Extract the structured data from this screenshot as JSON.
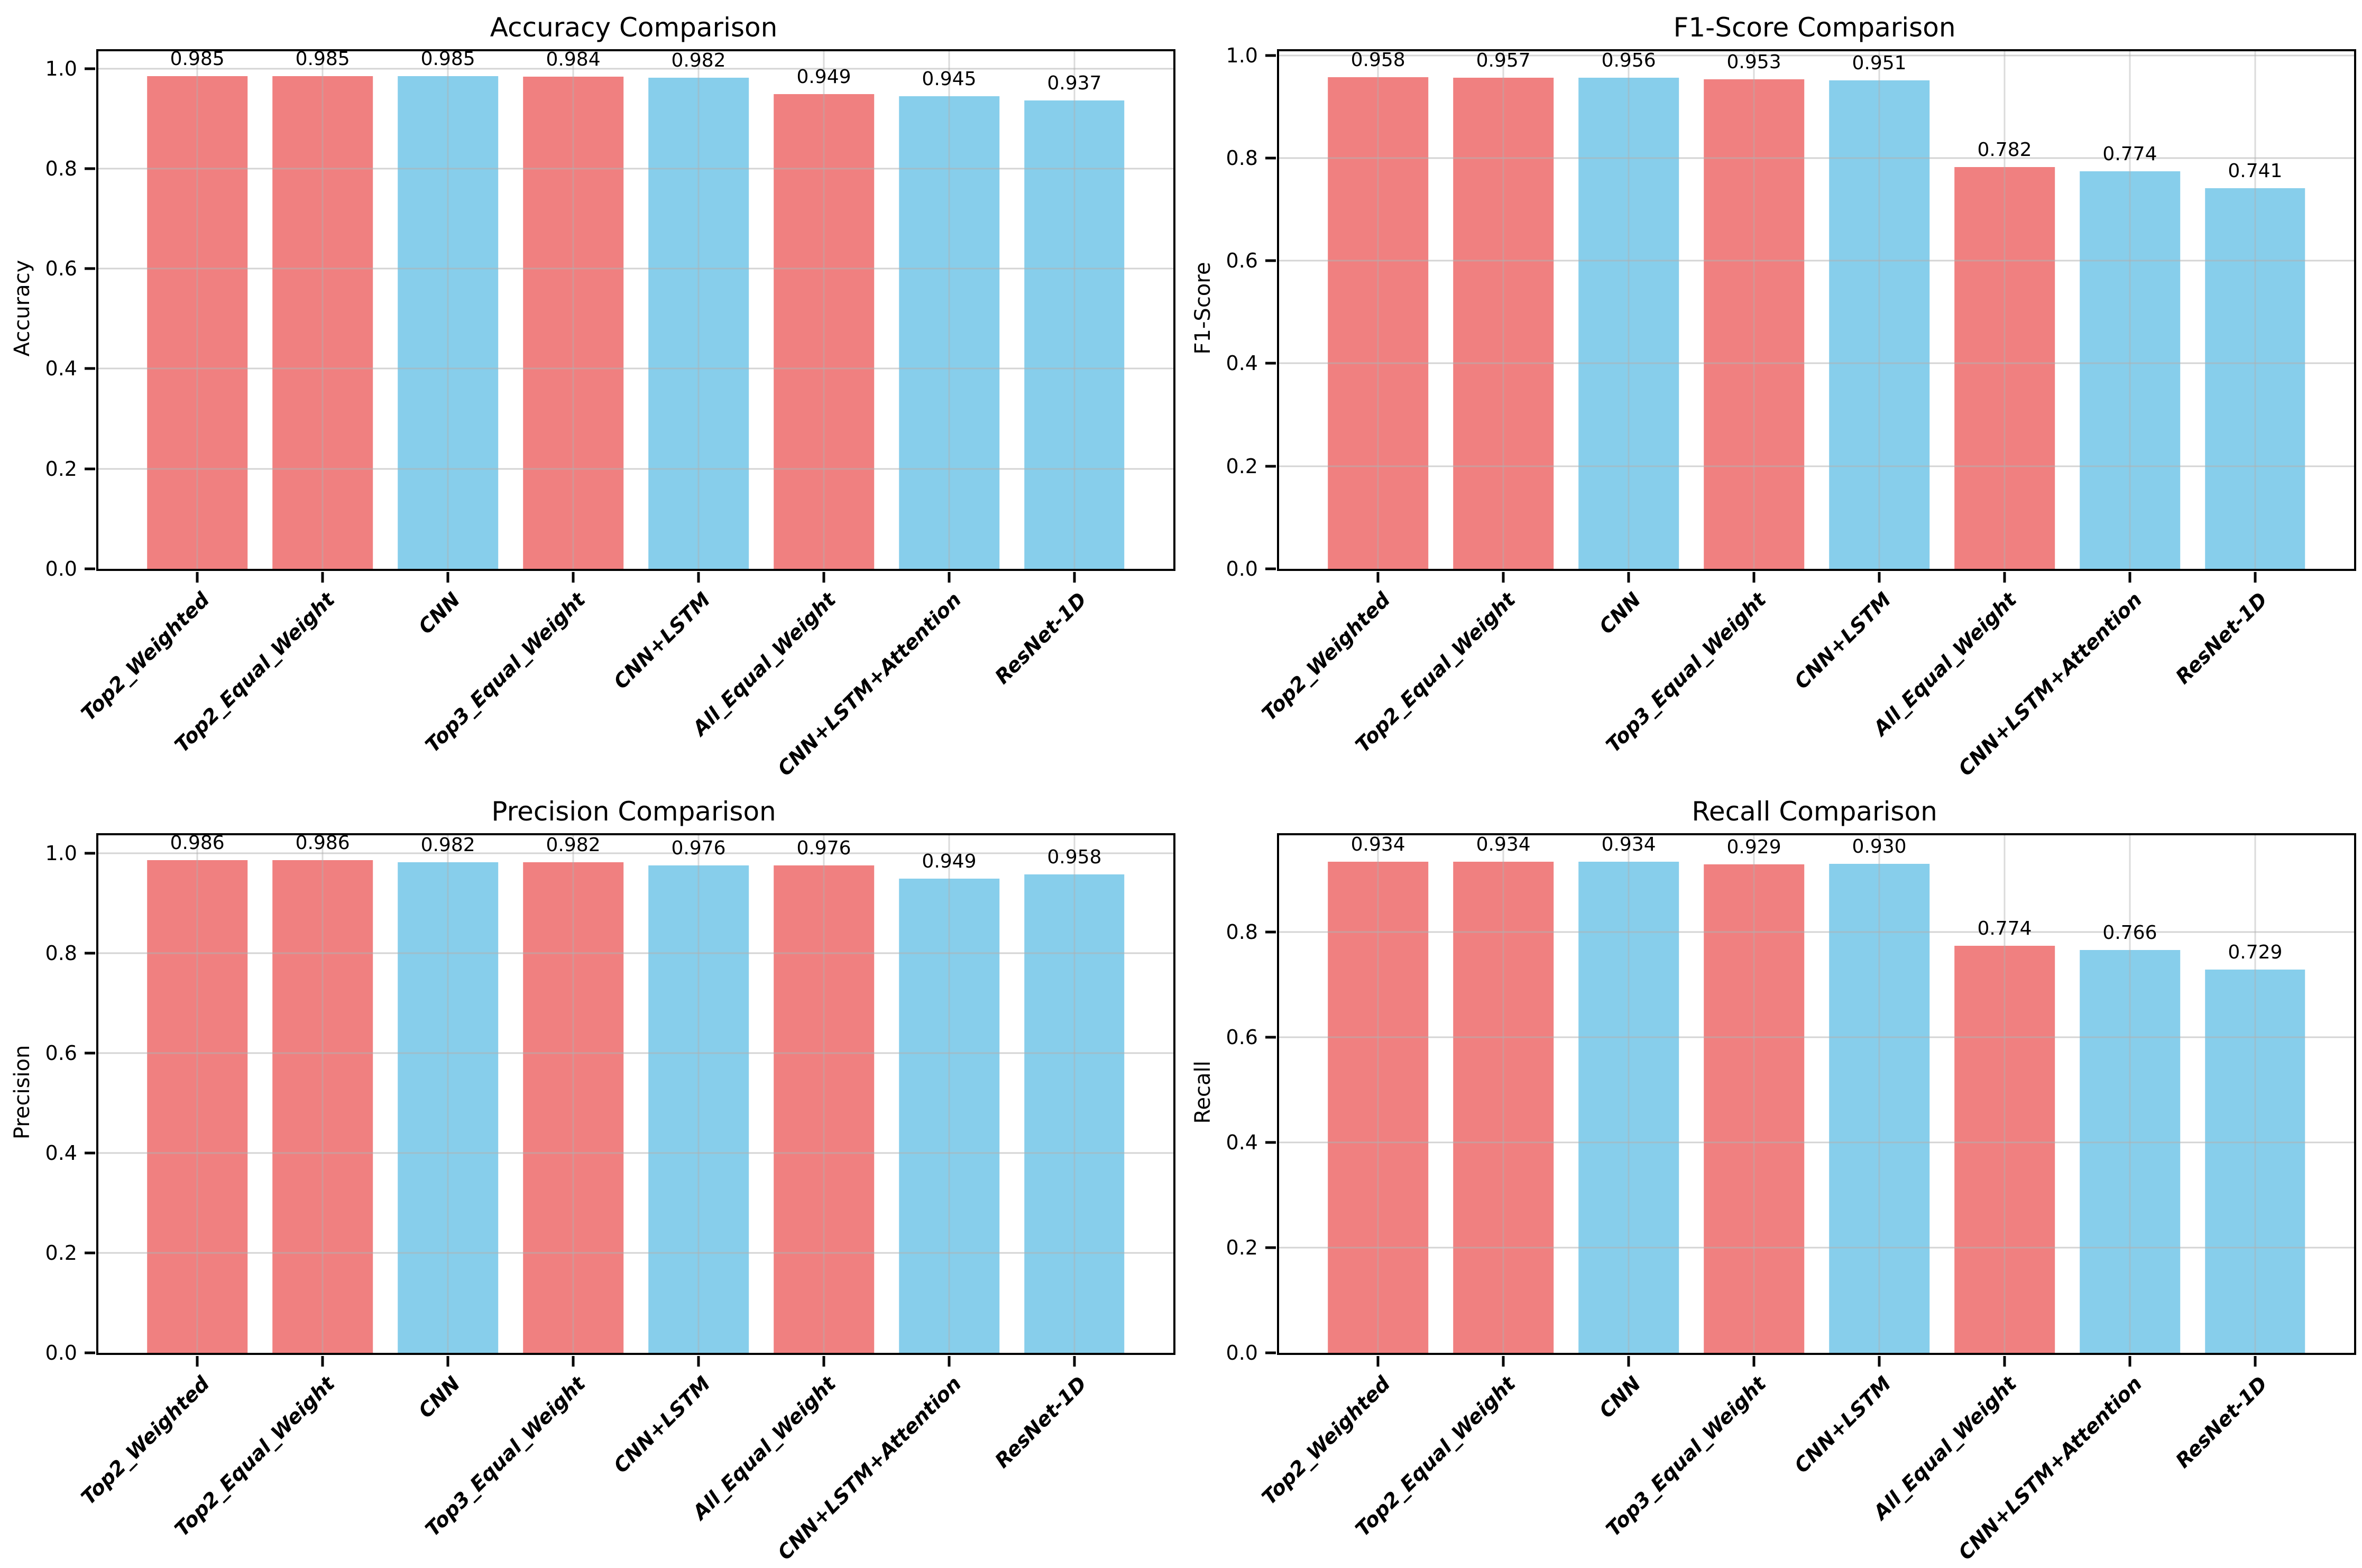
{
  "colors": {
    "coral_bar": "#F08080",
    "sky_blue_bar": "#87CEEB",
    "grid": "#B0B0B0",
    "spine": "#000000",
    "text": "#000000",
    "background": "#FFFFFF"
  },
  "chart_data": [
    {
      "type": "bar",
      "title": "Accuracy Comparison",
      "xlabel": "",
      "ylabel": "Accuracy",
      "categories": [
        "Top2_Weighted",
        "Top2_Equal_Weight",
        "CNN",
        "Top3_Equal_Weight",
        "CNN+LSTM",
        "All_Equal_Weight",
        "CNN+LSTM+Attention",
        "ResNet-1D"
      ],
      "values": [
        0.985,
        0.985,
        0.985,
        0.984,
        0.982,
        0.949,
        0.945,
        0.937
      ],
      "bar_labels": [
        "0.985",
        "0.985",
        "0.985",
        "0.984",
        "0.982",
        "0.949",
        "0.945",
        "0.937"
      ],
      "bar_colors": [
        "#F08080",
        "#F08080",
        "#87CEEB",
        "#F08080",
        "#87CEEB",
        "#F08080",
        "#87CEEB",
        "#87CEEB"
      ],
      "ylim": [
        0,
        1.035
      ],
      "yticks": [
        0.0,
        0.2,
        0.4,
        0.6,
        0.8,
        1.0
      ],
      "ytick_labels": [
        "0.0",
        "0.2",
        "0.4",
        "0.6",
        "0.8",
        "1.0"
      ],
      "grid": true,
      "legend_position": "none"
    },
    {
      "type": "bar",
      "title": "F1-Score Comparison",
      "xlabel": "",
      "ylabel": "F1-Score",
      "categories": [
        "Top2_Weighted",
        "Top2_Equal_Weight",
        "CNN",
        "Top3_Equal_Weight",
        "CNN+LSTM",
        "All_Equal_Weight",
        "CNN+LSTM+Attention",
        "ResNet-1D"
      ],
      "values": [
        0.958,
        0.957,
        0.956,
        0.953,
        0.951,
        0.782,
        0.774,
        0.741
      ],
      "bar_labels": [
        "0.958",
        "0.957",
        "0.956",
        "0.953",
        "0.951",
        "0.782",
        "0.774",
        "0.741"
      ],
      "bar_colors": [
        "#F08080",
        "#F08080",
        "#87CEEB",
        "#F08080",
        "#87CEEB",
        "#F08080",
        "#87CEEB",
        "#87CEEB"
      ],
      "ylim": [
        0,
        1.008
      ],
      "yticks": [
        0.0,
        0.2,
        0.4,
        0.6,
        0.8,
        1.0
      ],
      "ytick_labels": [
        "0.0",
        "0.2",
        "0.4",
        "0.6",
        "0.8",
        "1.0"
      ],
      "grid": true,
      "legend_position": "none"
    },
    {
      "type": "bar",
      "title": "Precision Comparison",
      "xlabel": "",
      "ylabel": "Precision",
      "categories": [
        "Top2_Weighted",
        "Top2_Equal_Weight",
        "CNN",
        "Top3_Equal_Weight",
        "CNN+LSTM",
        "All_Equal_Weight",
        "CNN+LSTM+Attention",
        "ResNet-1D"
      ],
      "values": [
        0.986,
        0.986,
        0.982,
        0.982,
        0.976,
        0.976,
        0.949,
        0.958
      ],
      "bar_labels": [
        "0.986",
        "0.986",
        "0.982",
        "0.982",
        "0.976",
        "0.976",
        "0.949",
        "0.958"
      ],
      "bar_colors": [
        "#F08080",
        "#F08080",
        "#87CEEB",
        "#F08080",
        "#87CEEB",
        "#F08080",
        "#87CEEB",
        "#87CEEB"
      ],
      "ylim": [
        0,
        1.036
      ],
      "yticks": [
        0.0,
        0.2,
        0.4,
        0.6,
        0.8,
        1.0
      ],
      "ytick_labels": [
        "0.0",
        "0.2",
        "0.4",
        "0.6",
        "0.8",
        "1.0"
      ],
      "grid": true,
      "legend_position": "none"
    },
    {
      "type": "bar",
      "title": "Recall Comparison",
      "xlabel": "",
      "ylabel": "Recall",
      "categories": [
        "Top2_Weighted",
        "Top2_Equal_Weight",
        "CNN",
        "Top3_Equal_Weight",
        "CNN+LSTM",
        "All_Equal_Weight",
        "CNN+LSTM+Attention",
        "ResNet-1D"
      ],
      "values": [
        0.934,
        0.934,
        0.934,
        0.929,
        0.93,
        0.774,
        0.766,
        0.729
      ],
      "bar_labels": [
        "0.934",
        "0.934",
        "0.934",
        "0.929",
        "0.930",
        "0.774",
        "0.766",
        "0.729"
      ],
      "bar_colors": [
        "#F08080",
        "#F08080",
        "#87CEEB",
        "#F08080",
        "#87CEEB",
        "#F08080",
        "#87CEEB",
        "#87CEEB"
      ],
      "ylim": [
        0,
        0.984
      ],
      "yticks": [
        0.0,
        0.2,
        0.4,
        0.6,
        0.8
      ],
      "ytick_labels": [
        "0.0",
        "0.2",
        "0.4",
        "0.6",
        "0.8"
      ],
      "grid": true,
      "legend_position": "none"
    }
  ]
}
